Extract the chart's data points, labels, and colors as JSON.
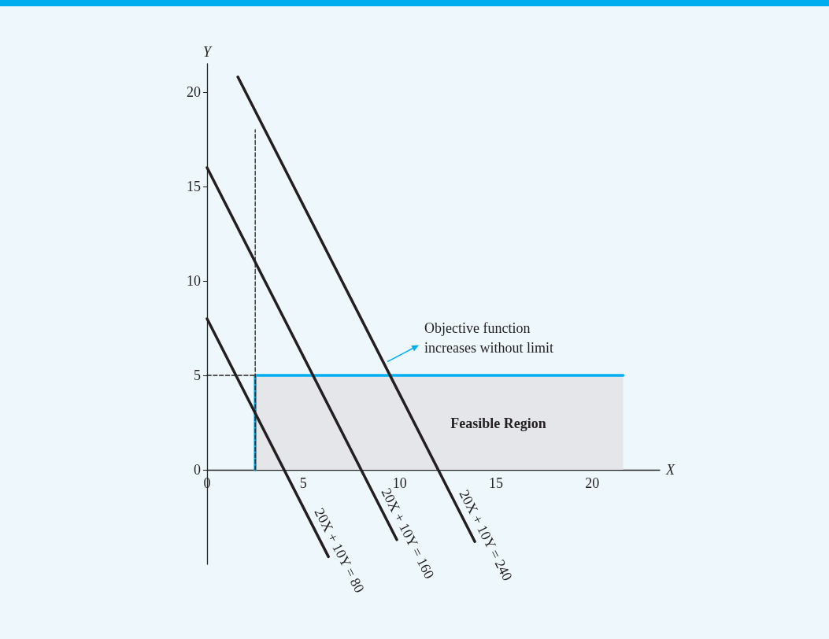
{
  "chart_data": {
    "type": "line",
    "xlabel": "X",
    "ylabel": "Y",
    "xlim": [
      0,
      23.5
    ],
    "ylim": [
      -5,
      21.5
    ],
    "xticks": [
      0,
      5,
      10,
      15,
      20
    ],
    "yticks": [
      0,
      5,
      10,
      15,
      20
    ],
    "grid": false,
    "legend": false,
    "marker": "none",
    "series": [
      {
        "name": "20X + 10Y = 80",
        "color": "#231f20",
        "x": [
          0,
          6.3
        ],
        "values": [
          8,
          -4.6
        ]
      },
      {
        "name": "20X + 10Y = 160",
        "color": "#231f20",
        "x": [
          0,
          9.85
        ],
        "values": [
          16,
          -3.7
        ]
      },
      {
        "name": "20X + 10Y = 240",
        "color": "#231f20",
        "x": [
          1.6,
          13.9
        ],
        "values": [
          20.8,
          -3.8
        ]
      },
      {
        "color": "#231f20",
        "line_style": "dashed",
        "x": [
          2.5,
          2.5
        ],
        "values": [
          0,
          18
        ]
      },
      {
        "color": "#231f20",
        "line_style": "dashed",
        "x": [
          0,
          2.5
        ],
        "values": [
          5,
          5
        ]
      },
      {
        "type": "area",
        "color": "#00aeef",
        "x": [
          2.5,
          2.5,
          21.6
        ],
        "values": [
          0,
          5,
          5
        ]
      }
    ],
    "annotations": [
      {
        "text": "Objective function\nincreases without limit",
        "x": 9.2,
        "y": 5.6
      },
      "Feasible Region"
    ]
  }
}
